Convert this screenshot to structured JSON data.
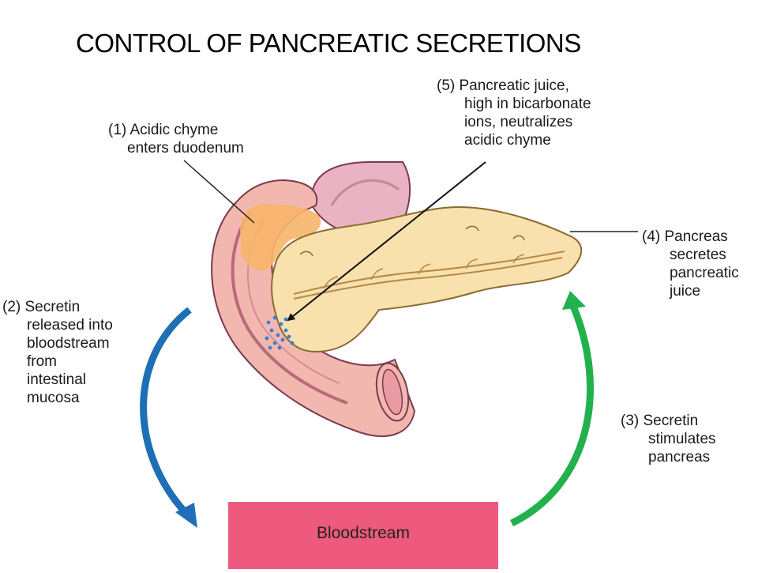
{
  "title": "CONTROL OF PANCREATIC SECRETIONS",
  "labels": {
    "step1": [
      "(1) Acidic chyme",
      "enters duodenum"
    ],
    "step2": [
      "(2) Secretin",
      "released into",
      "bloodstream",
      "from",
      "intestinal",
      "mucosa"
    ],
    "step3": [
      "(3) Secretin",
      "stimulates",
      "pancreas"
    ],
    "step4": [
      "(4) Pancreas",
      "secretes",
      "pancreatic",
      "juice"
    ],
    "step5": [
      "(5) Pancreatic juice,",
      "high in bicarbonate",
      "ions, neutralizes",
      "acidic chyme"
    ]
  },
  "bloodstream_label": "Bloodstream",
  "colors": {
    "blue_arrow": "#1e6fb5",
    "green_arrow": "#22b14c",
    "bloodstream_box": "#ee5a7e",
    "duodenum": "#f2b8b0",
    "pancreas": "#f8e1ac",
    "chyme": "#f7b56a"
  }
}
